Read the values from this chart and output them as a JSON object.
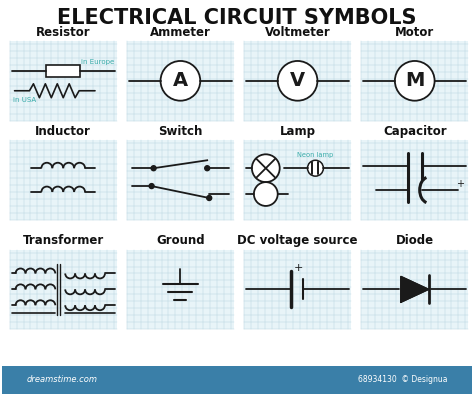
{
  "title": "ELECTRICAL CIRCUIT SYMBOLS",
  "title_fontsize": 15,
  "title_color": "#111111",
  "bg_color": "#ffffff",
  "grid_color": "#b8d4e0",
  "symbol_label_color": "#111111",
  "teal_color": "#3aacaa",
  "label_fontsize": 8.5,
  "dark": "#1a1a1a",
  "symbol_labels": [
    "Resistor",
    "Ammeter",
    "Voltmeter",
    "Motor",
    "Inductor",
    "Switch",
    "Lamp",
    "Capacitor",
    "Transformer",
    "Ground",
    "DC voltage source",
    "Diode"
  ],
  "footer_color": "#aaaaaa",
  "footer": "68934130  © Designua",
  "bottom_bar_color": "#3a7fa8",
  "dreamstime": "dreamstime.com"
}
